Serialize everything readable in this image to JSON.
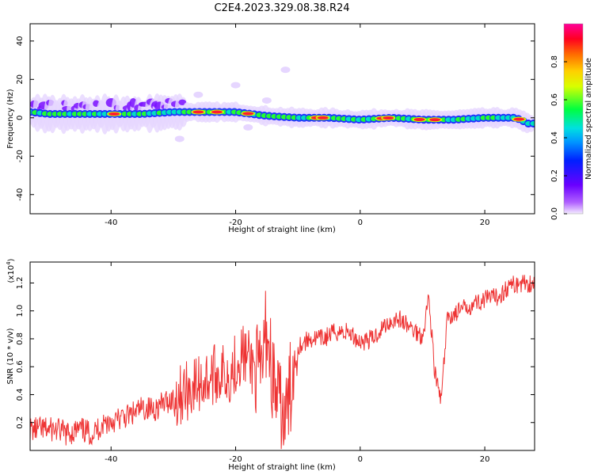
{
  "title": "C2E4.2023.329.08.38.R24",
  "chart_data": [
    {
      "type": "heatmap",
      "title": "C2E4.2023.329.08.38.R24",
      "xlabel": "Height of straight line (km)",
      "ylabel": "Frequency (Hz)",
      "xlim": [
        -53,
        28
      ],
      "ylim": [
        -50,
        49
      ],
      "xticks": [
        -40,
        -20,
        0,
        20
      ],
      "xtick_labels": [
        "-40",
        "-20",
        "0",
        "20"
      ],
      "yticks": [
        -40,
        -20,
        0,
        20,
        40
      ],
      "ytick_labels": [
        "-40",
        "-20",
        "0",
        "20",
        "40"
      ],
      "ridge": {
        "description": "dominant frequency ridge vs height",
        "x": [
          -53,
          -50,
          -45,
          -40,
          -35,
          -30,
          -25,
          -20,
          -15,
          -10,
          -5,
          0,
          5,
          10,
          15,
          20,
          25,
          27
        ],
        "freq": [
          3,
          2,
          2,
          2,
          2,
          3,
          3,
          3,
          1,
          0,
          0,
          -1,
          0,
          -1,
          -1,
          0,
          0,
          -3
        ]
      },
      "colorbar": {
        "label": "Normalized spectral amplitude",
        "range": [
          0,
          1
        ],
        "ticks": [
          0.0,
          0.2,
          0.4,
          0.6,
          0.8
        ],
        "tick_labels": [
          "0.0",
          "0.2",
          "0.4",
          "0.6",
          "0.8"
        ]
      }
    },
    {
      "type": "line",
      "xlabel": "Height of straight line (km)",
      "ylabel": "SNR (10 * v/v)",
      "yscale_label": "(x10",
      "yscale_exp": "4",
      "yscale_close": ")",
      "xlim": [
        -53,
        28
      ],
      "ylim": [
        0,
        1.35
      ],
      "xticks": [
        -40,
        -20,
        0,
        20
      ],
      "xtick_labels": [
        "-40",
        "-20",
        "0",
        "20"
      ],
      "yticks": [
        0.2,
        0.4,
        0.6,
        0.8,
        1.0,
        1.2
      ],
      "ytick_labels": [
        "0.2",
        "0.4",
        "0.6",
        "0.8",
        "1.0",
        "1.2"
      ],
      "series": [
        {
          "name": "SNR",
          "color": "#ee3333",
          "x": [
            -53,
            -51,
            -49,
            -47,
            -45,
            -43,
            -41,
            -39,
            -37,
            -35,
            -33,
            -31,
            -29,
            -27,
            -25,
            -23,
            -21,
            -19,
            -17,
            -16,
            -15,
            -14,
            -13,
            -12,
            -11,
            -10,
            -8,
            -6,
            -4,
            -2,
            0,
            2,
            4,
            6,
            8,
            10,
            11,
            12,
            13,
            14,
            16,
            18,
            20,
            22,
            24,
            26,
            28
          ],
          "y": [
            0.15,
            0.15,
            0.15,
            0.12,
            0.15,
            0.12,
            0.2,
            0.22,
            0.25,
            0.3,
            0.3,
            0.35,
            0.4,
            0.45,
            0.5,
            0.55,
            0.55,
            0.7,
            0.6,
            0.5,
            0.9,
            0.5,
            0.3,
            0.2,
            0.5,
            0.75,
            0.8,
            0.8,
            0.85,
            0.85,
            0.78,
            0.8,
            0.9,
            0.95,
            0.88,
            0.82,
            1.1,
            0.55,
            0.35,
            0.95,
            1.0,
            1.05,
            1.08,
            1.1,
            1.18,
            1.2,
            1.2
          ]
        }
      ]
    }
  ]
}
